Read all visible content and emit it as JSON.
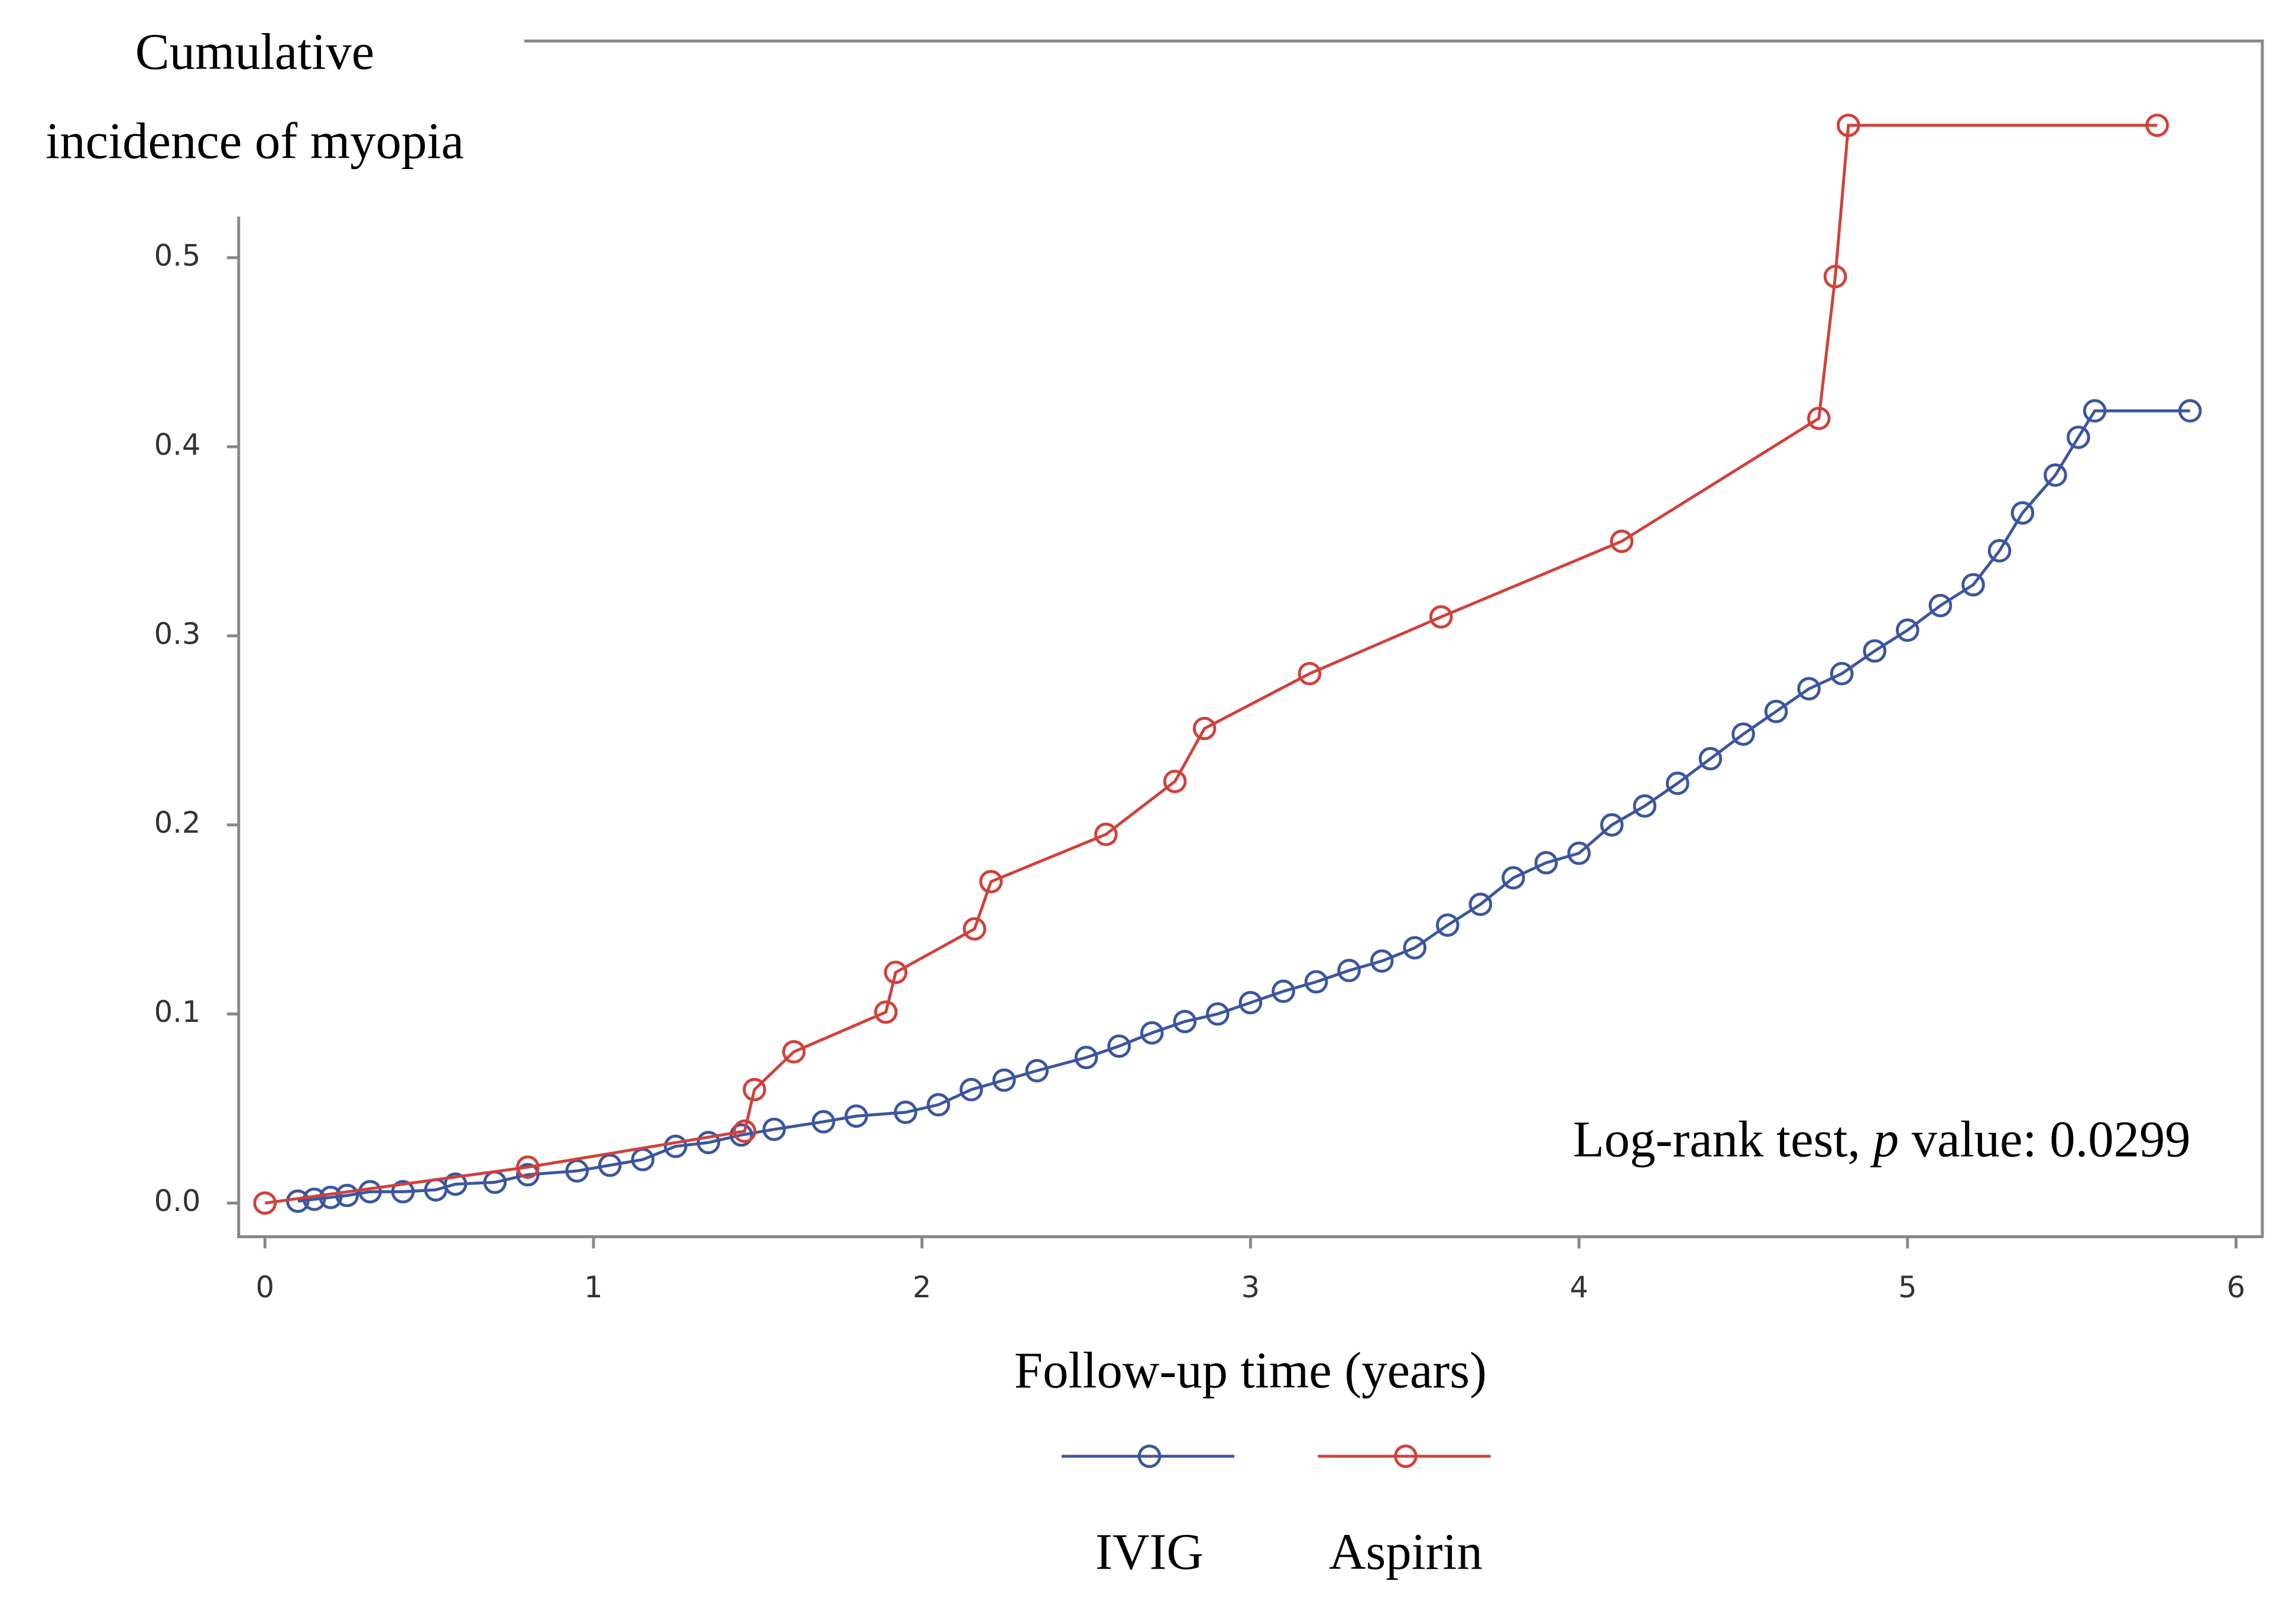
{
  "chart_data": {
    "type": "line",
    "ylabel": [
      "Cumulative",
      "incidence of myopia"
    ],
    "xlabel": "Follow-up time (years)",
    "annotation": {
      "before": "Log-rank test, ",
      "italic": "p",
      "after": " value: 0.0299"
    },
    "xlim": [
      -0.08,
      6.08
    ],
    "ylim": [
      -0.0178,
      0.6146
    ],
    "xticks": [
      0,
      1,
      2,
      3,
      4,
      5,
      6
    ],
    "yticks": [
      {
        "value": 0,
        "label": "0.0"
      },
      0.1,
      0.2,
      0.3,
      0.4,
      0.5
    ],
    "series": [
      {
        "name": "IVIG",
        "color": "#3b55a0",
        "x": [
          0.1,
          0.15,
          0.2,
          0.25,
          0.32,
          0.42,
          0.52,
          0.58,
          0.7,
          0.8,
          0.95,
          1.05,
          1.15,
          1.25,
          1.35,
          1.45,
          1.55,
          1.7,
          1.8,
          1.95,
          2.05,
          2.15,
          2.25,
          2.35,
          2.5,
          2.6,
          2.7,
          2.8,
          2.9,
          3.0,
          3.1,
          3.2,
          3.3,
          3.4,
          3.5,
          3.6,
          3.7,
          3.8,
          3.9,
          4.0,
          4.1,
          4.2,
          4.3,
          4.4,
          4.5,
          4.6,
          4.7,
          4.8,
          4.9,
          5.0,
          5.1,
          5.2,
          5.28,
          5.35,
          5.45,
          5.52,
          5.57,
          5.86
        ],
        "values": [
          0.001,
          0.002,
          0.003,
          0.004,
          0.006,
          0.006,
          0.007,
          0.01,
          0.011,
          0.015,
          0.017,
          0.02,
          0.023,
          0.03,
          0.032,
          0.036,
          0.039,
          0.043,
          0.046,
          0.048,
          0.052,
          0.06,
          0.065,
          0.07,
          0.077,
          0.083,
          0.09,
          0.096,
          0.1,
          0.106,
          0.112,
          0.117,
          0.123,
          0.128,
          0.135,
          0.147,
          0.158,
          0.172,
          0.18,
          0.185,
          0.2,
          0.21,
          0.222,
          0.235,
          0.248,
          0.26,
          0.272,
          0.28,
          0.292,
          0.303,
          0.316,
          0.327,
          0.345,
          0.365,
          0.385,
          0.405,
          0.419,
          0.419
        ]
      },
      {
        "name": "Aspirin",
        "color": "#d1403a",
        "x": [
          0,
          0.8,
          1.46,
          1.49,
          1.61,
          1.89,
          1.92,
          2.16,
          2.21,
          2.56,
          2.77,
          2.86,
          3.18,
          3.58,
          4.13,
          4.73,
          4.78,
          4.82,
          5.76
        ],
        "values": [
          0,
          0.019,
          0.038,
          0.06,
          0.08,
          0.101,
          0.122,
          0.145,
          0.17,
          0.195,
          0.223,
          0.251,
          0.28,
          0.31,
          0.35,
          0.415,
          0.49,
          0.57,
          0.57
        ]
      }
    ]
  }
}
